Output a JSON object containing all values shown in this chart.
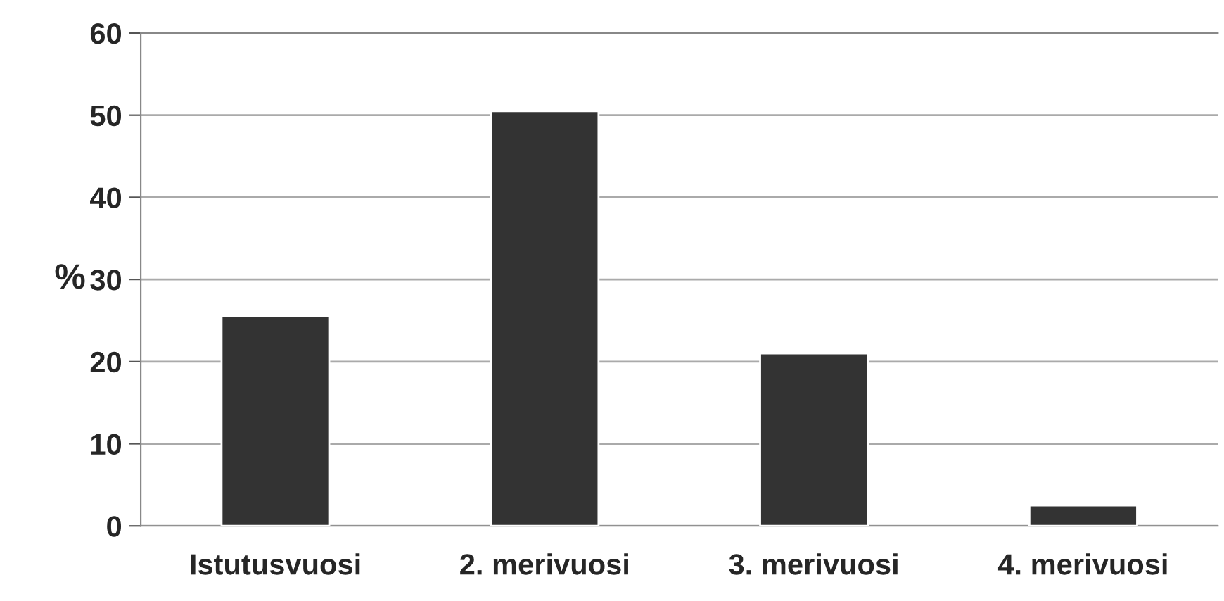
{
  "chart_data": {
    "type": "bar",
    "categories": [
      "Istutusvuosi",
      "2. merivuosi",
      "3. merivuosi",
      "4. merivuosi"
    ],
    "values": [
      25.5,
      50.5,
      21,
      2.5
    ],
    "color": "#333333",
    "ylabel": "%",
    "ylim": [
      0,
      60
    ],
    "yticks": [
      0,
      10,
      20,
      30,
      40,
      50,
      60
    ],
    "grid": "y"
  }
}
